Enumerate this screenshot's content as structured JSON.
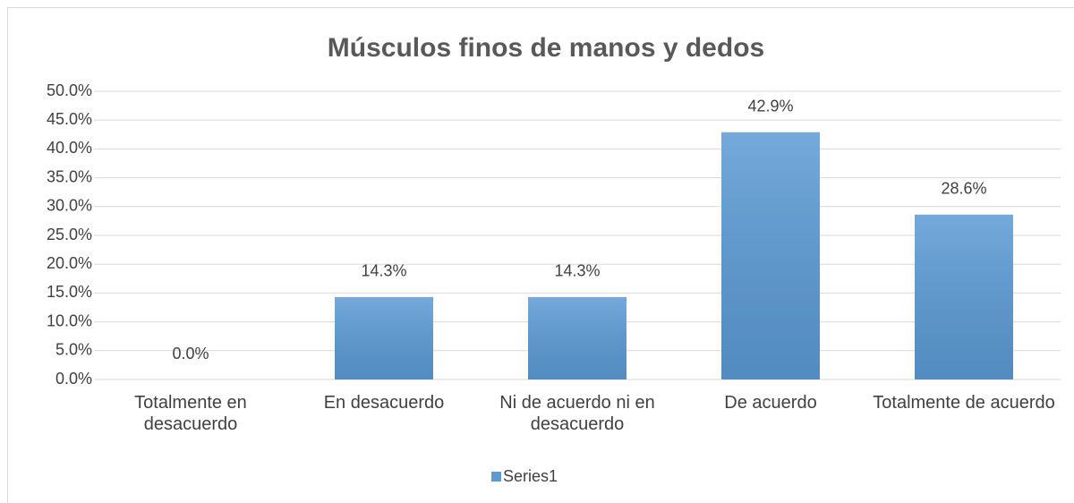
{
  "chart_data": {
    "type": "bar",
    "title": "Músculos finos de manos y dedos",
    "categories": [
      "Totalmente en desacuerdo",
      "En desacuerdo",
      "Ni de acuerdo ni en desacuerdo",
      "De acuerdo",
      "Totalmente de acuerdo"
    ],
    "series": [
      {
        "name": "Series1",
        "color": "#5b9bd5",
        "values": [
          0,
          14.3,
          14.3,
          42.9,
          28.6
        ],
        "value_labels": [
          "0.0%",
          "14.3%",
          "14.3%",
          "42.9%",
          "28.6%"
        ]
      }
    ],
    "ylim": [
      0,
      50
    ],
    "yticks": [
      {
        "value": 0,
        "label": "0.0%"
      },
      {
        "value": 5,
        "label": "5.0%"
      },
      {
        "value": 10,
        "label": "10.0%"
      },
      {
        "value": 15,
        "label": "15.0%"
      },
      {
        "value": 20,
        "label": "20.0%"
      },
      {
        "value": 25,
        "label": "25.0%"
      },
      {
        "value": 30,
        "label": "30.0%"
      },
      {
        "value": 35,
        "label": "35.0%"
      },
      {
        "value": 40,
        "label": "40.0%"
      },
      {
        "value": 45,
        "label": "45.0%"
      },
      {
        "value": 50,
        "label": "50.0%"
      }
    ],
    "grid": true,
    "legend": "bottom"
  }
}
